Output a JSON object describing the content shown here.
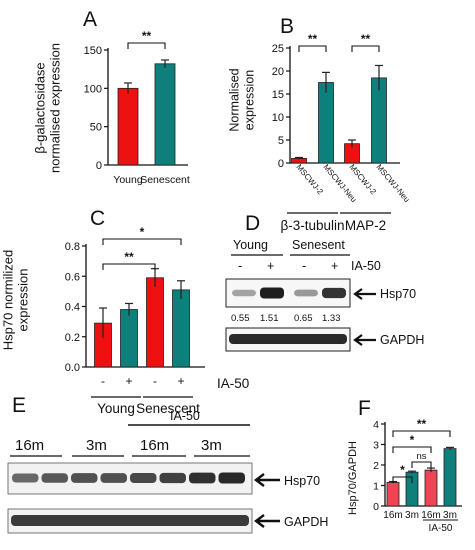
{
  "colors": {
    "red": "#ee1111",
    "teal": "#0e7f7b",
    "pink": "#ee4455",
    "err": "#222222"
  },
  "panels": {
    "A": "A",
    "B": "B",
    "C": "C",
    "D": "D",
    "E": "E",
    "F": "F"
  },
  "chart_data": [
    {
      "panel": "A",
      "type": "bar",
      "ylabel": "β-galactosidase\nnormalised expression",
      "ylim": [
        0,
        150
      ],
      "yticks": [
        0,
        50,
        100,
        150
      ],
      "categories": [
        "Young",
        "Senescent"
      ],
      "values": [
        100,
        132
      ],
      "errors": [
        7,
        5
      ],
      "bar_colors": [
        "red",
        "teal"
      ],
      "significance": [
        {
          "from": 0,
          "to": 1,
          "label": "**"
        }
      ]
    },
    {
      "panel": "B",
      "type": "bar",
      "ylabel": "Normalised\nexpression",
      "ylim": [
        0,
        25
      ],
      "yticks": [
        0,
        5,
        10,
        15,
        20,
        25
      ],
      "categories": [
        "MSCWJ-2",
        "MSCWJ-Neu",
        "MSCWJ-2",
        "MSCWJ-Neu"
      ],
      "values": [
        1,
        17.5,
        4.2,
        18.5
      ],
      "errors": [
        0.2,
        2.2,
        0.8,
        2.7
      ],
      "bar_colors": [
        "red",
        "teal",
        "red",
        "teal"
      ],
      "groups": [
        {
          "label": "β-3-tubulin",
          "from": 0,
          "to": 1
        },
        {
          "label": "MAP-2",
          "from": 2,
          "to": 3
        }
      ],
      "significance": [
        {
          "from": 0,
          "to": 1,
          "label": "**"
        },
        {
          "from": 2,
          "to": 3,
          "label": "**"
        }
      ]
    },
    {
      "panel": "C",
      "type": "bar",
      "ylabel": "Hsp70 normilized\nexpression",
      "ylim": [
        0,
        0.8
      ],
      "yticks": [
        0.0,
        0.2,
        0.4,
        0.6,
        0.8
      ],
      "categories": [
        "-",
        "+",
        "-",
        "+"
      ],
      "values": [
        0.29,
        0.38,
        0.59,
        0.51
      ],
      "errors": [
        0.1,
        0.04,
        0.06,
        0.06
      ],
      "bar_colors": [
        "red",
        "teal",
        "red",
        "teal"
      ],
      "treatment_label": "IA-50",
      "groups": [
        {
          "label": "Young",
          "from": 0,
          "to": 1
        },
        {
          "label": "Senescent",
          "from": 2,
          "to": 3
        }
      ],
      "significance": [
        {
          "from": 0,
          "to": 2,
          "label": "**"
        },
        {
          "from": 0,
          "to": 3,
          "label": "*"
        }
      ]
    },
    {
      "panel": "F",
      "type": "bar",
      "ylabel": "Hsp70/GAPDH",
      "ylim": [
        0,
        4
      ],
      "yticks": [
        0,
        1,
        2,
        3,
        4
      ],
      "categories": [
        "16m",
        "3m",
        "16m",
        "3m"
      ],
      "values": [
        1.15,
        1.65,
        1.75,
        2.8
      ],
      "errors": [
        0.04,
        0.05,
        0.1,
        0.06
      ],
      "bar_colors": [
        "pink",
        "teal",
        "pink",
        "teal"
      ],
      "treatment_label": "IA-50",
      "significance": [
        {
          "from": 0,
          "to": 1,
          "label": "*"
        },
        {
          "from": 1,
          "to": 2,
          "label": "ns"
        },
        {
          "from": 0,
          "to": 2,
          "label": "*"
        },
        {
          "from": 0,
          "to": 3,
          "label": "**"
        }
      ]
    }
  ],
  "blot_d": {
    "groups": [
      "Young",
      "Senesent"
    ],
    "lanes": [
      "-",
      "+",
      "-",
      "+"
    ],
    "treatment_label": "IA-50",
    "quant": [
      "0.55",
      "1.51",
      "0.65",
      "1.33"
    ],
    "intensity": [
      0.35,
      1.0,
      0.4,
      0.9
    ],
    "bands": [
      "Hsp70",
      "GAPDH"
    ]
  },
  "blot_e": {
    "treatment_label": "IA-50",
    "groups": [
      "16m",
      "3m",
      "16m",
      "3m"
    ],
    "hsp_intensity": [
      0.6,
      0.7,
      0.75,
      0.75,
      0.8,
      0.85,
      0.95,
      1.0
    ],
    "bands": [
      "Hsp70",
      "GAPDH"
    ]
  }
}
